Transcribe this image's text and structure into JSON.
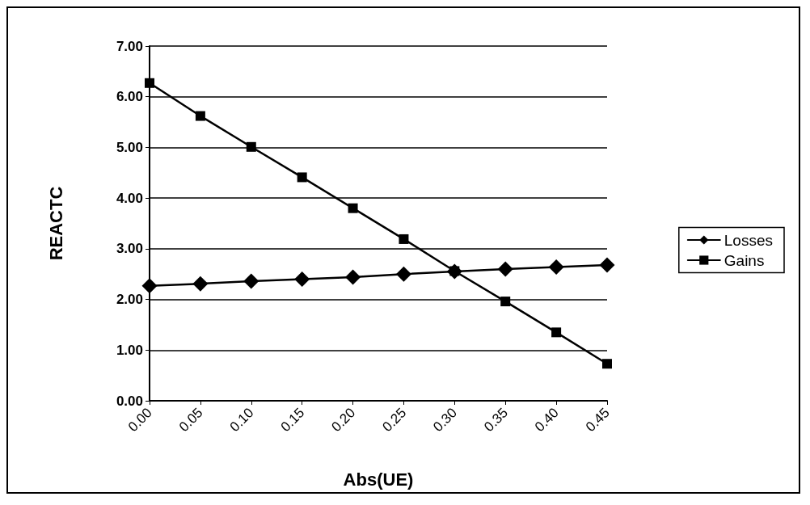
{
  "chart_data": {
    "type": "line",
    "xlabel": "Abs(UE)",
    "ylabel": "REACTC",
    "categories": [
      "0.00",
      "0.05",
      "0.10",
      "0.15",
      "0.20",
      "0.25",
      "0.30",
      "0.35",
      "0.40",
      "0.45"
    ],
    "series": [
      {
        "name": "Losses",
        "color": "#000000",
        "marker": "diamond",
        "values": [
          2.27,
          2.31,
          2.36,
          2.4,
          2.44,
          2.5,
          2.55,
          2.6,
          2.64,
          2.68
        ]
      },
      {
        "name": "Gains",
        "color": "#000000",
        "marker": "square",
        "values": [
          6.27,
          5.62,
          5.01,
          4.41,
          3.8,
          3.19,
          2.56,
          1.96,
          1.35,
          0.73
        ]
      }
    ],
    "ylim": [
      0,
      7
    ],
    "yticks": [
      {
        "value": 0,
        "label": "0.00"
      },
      {
        "value": 1,
        "label": "1.00"
      },
      {
        "value": 2,
        "label": "2.00"
      },
      {
        "value": 3,
        "label": "3.00"
      },
      {
        "value": 4,
        "label": "4.00"
      },
      {
        "value": 5,
        "label": "5.00"
      },
      {
        "value": 6,
        "label": "6.00"
      },
      {
        "value": 7,
        "label": "7.00"
      }
    ],
    "grid": "y",
    "legend": "right",
    "line_style": "solid"
  }
}
